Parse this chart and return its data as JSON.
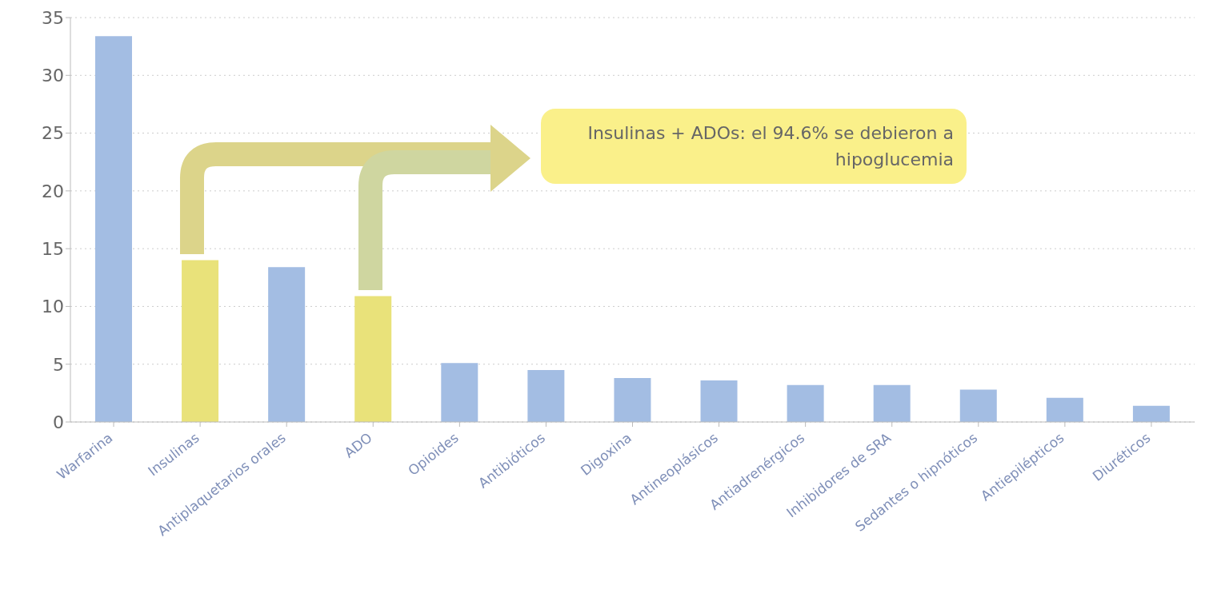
{
  "chart_data": {
    "type": "bar",
    "categories": [
      "Warfarina",
      "Insulinas",
      "Antiplaquetarios orales",
      "ADO",
      "Opioides",
      "Antibióticos",
      "Digoxina",
      "Antineoplásicos",
      "Antiadrenérgicos",
      "Inhibidores de SRA",
      "Sedantes o hipnóticos",
      "Antiepilépticos",
      "Diuréticos"
    ],
    "values": [
      33.4,
      14.0,
      13.4,
      10.9,
      5.1,
      4.5,
      3.8,
      3.6,
      3.2,
      3.2,
      2.8,
      2.1,
      1.4
    ],
    "colors": [
      "#a3bde3",
      "#e9e27a",
      "#a3bde3",
      "#e9e27a",
      "#a3bde3",
      "#a3bde3",
      "#a3bde3",
      "#a3bde3",
      "#a3bde3",
      "#a3bde3",
      "#a3bde3",
      "#a3bde3",
      "#a3bde3"
    ],
    "ylim": [
      0,
      35
    ],
    "yticks": [
      0,
      5,
      10,
      15,
      20,
      25,
      30,
      35
    ],
    "grid": "y",
    "annotations": [
      "Insulinas + ADOs: el 94.6% se debieron a hipoglucemia"
    ]
  }
}
